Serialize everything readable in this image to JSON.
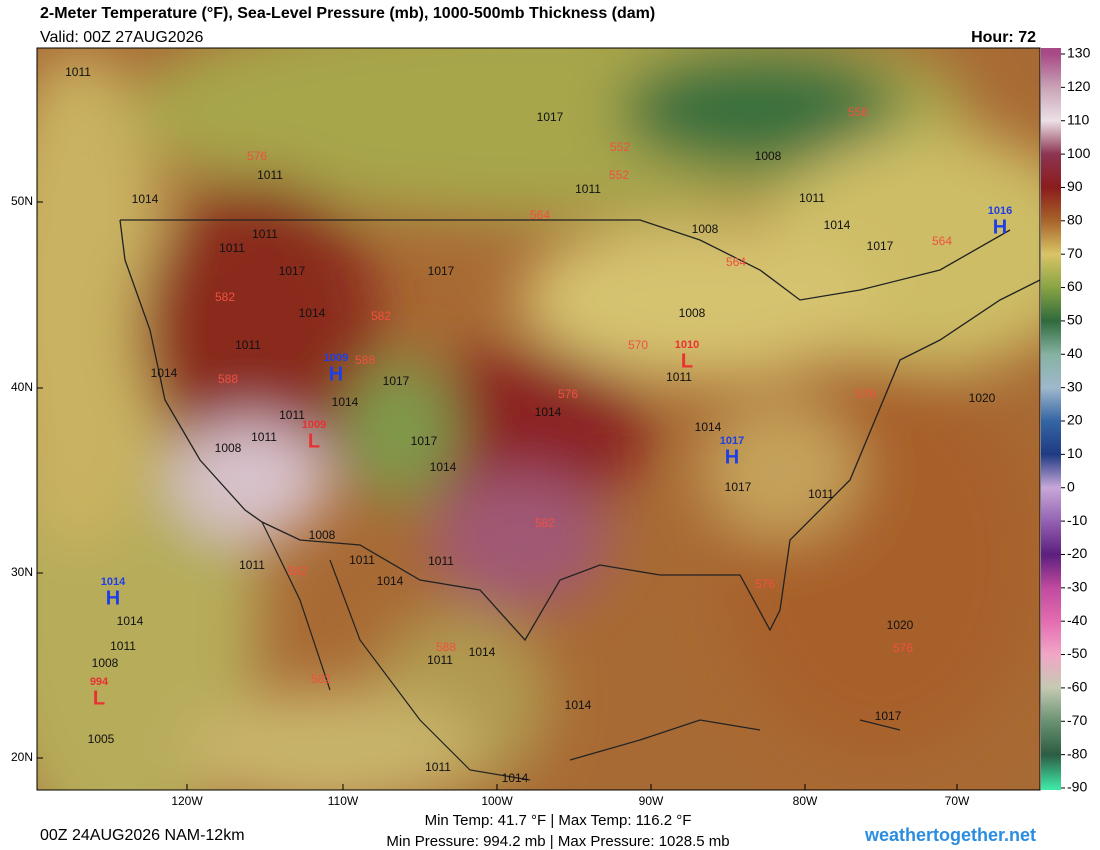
{
  "header": {
    "title": "2-Meter Temperature (°F), Sea-Level Pressure (mb), 1000-500mb Thickness (dam)",
    "valid": "Valid: 00Z 27AUG2026",
    "hour": "Hour: 72"
  },
  "colorbar": {
    "lim": [
      -90,
      130
    ],
    "ticks": [
      130,
      120,
      110,
      100,
      90,
      80,
      70,
      60,
      50,
      40,
      30,
      20,
      10,
      0,
      -10,
      -20,
      -30,
      -40,
      -50,
      -60,
      -70,
      -80,
      -90
    ],
    "colors": [
      "#a84a86",
      "#c9a3b6",
      "#ece0e6",
      "#8c3552",
      "#8b1c1c",
      "#a8642a",
      "#d9c466",
      "#88a444",
      "#2f6b3c",
      "#86b2a2",
      "#9fb8cc",
      "#3565a4",
      "#1f3a84",
      "#c8a8d8",
      "#9462b2",
      "#5c1f7e",
      "#c04a9e",
      "#e46cb0",
      "#f2a6c6",
      "#c4cab2",
      "#6a9272",
      "#2c5c42",
      "#3ee6a4"
    ]
  },
  "map": {
    "lat_labels": [
      "50N",
      "40N",
      "30N",
      "20N"
    ],
    "lon_labels": [
      "120W",
      "110W",
      "100W",
      "90W",
      "80W",
      "70W"
    ],
    "centers": [
      {
        "letter": "H",
        "value": "1009"
      },
      {
        "letter": "H",
        "value": "1017"
      },
      {
        "letter": "H",
        "value": "1014"
      },
      {
        "letter": "H",
        "value": "1016"
      },
      {
        "letter": "L",
        "value": "1009"
      },
      {
        "letter": "L",
        "value": "994"
      },
      {
        "letter": "L",
        "value": "1010"
      }
    ],
    "isobar_labels": [
      "1011",
      "1017",
      "1008",
      "1011",
      "1011",
      "1014",
      "1017",
      "1008",
      "1014",
      "1011",
      "1011",
      "1011",
      "1017",
      "1017",
      "1014",
      "1008",
      "1011",
      "1014",
      "1011",
      "1014",
      "1014",
      "1017",
      "1014",
      "1011",
      "1011",
      "1008",
      "1017",
      "1014",
      "1017",
      "1011",
      "1008",
      "1011",
      "1011",
      "1014",
      "1011",
      "1020",
      "1020",
      "1014",
      "1011",
      "1008",
      "1005",
      "1014",
      "1017",
      "1014",
      "1011",
      "1014",
      "1011"
    ],
    "thickness_labels": [
      "576",
      "552",
      "558",
      "552",
      "564",
      "564",
      "564",
      "582",
      "582",
      "570",
      "588",
      "588",
      "576",
      "576",
      "582",
      "582",
      "576",
      "576",
      "588",
      "582"
    ]
  },
  "footer": {
    "run": "00Z 24AUG2026 NAM-12km",
    "temps": "Min Temp:  41.7 °F | Max Temp: 116.2 °F",
    "pressures": "Min Pressure: 994.2 mb | Max Pressure: 1028.5 mb",
    "site": "weathertogether.net"
  }
}
